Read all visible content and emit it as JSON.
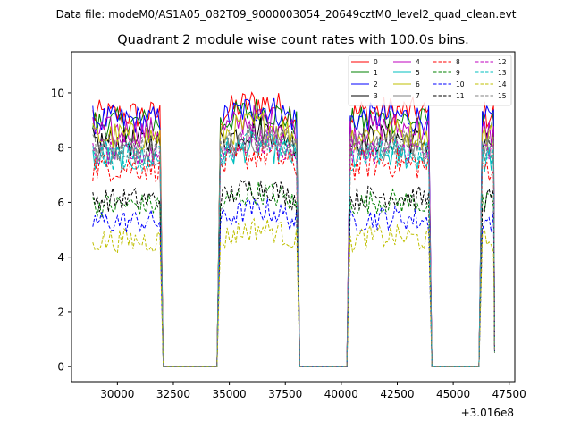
{
  "suptitle": "Data file: modeM0/AS1A05_082T09_9000003054_20649cztM0_level2_quad_clean.evt",
  "chart_data": {
    "type": "line",
    "title": "Quadrant 2 module wise count rates with 100.0s bins.",
    "xlabel": "",
    "ylabel": "",
    "x_offset_label": "+3.016e8",
    "xlim": [
      27950,
      47750
    ],
    "ylim": [
      -0.55,
      11.5
    ],
    "x_ticks": [
      30000,
      32500,
      35000,
      37500,
      40000,
      42500,
      45000,
      47500
    ],
    "x_tick_labels": [
      "30000",
      "32500",
      "35000",
      "37500",
      "40000",
      "42500",
      "45000",
      "47500"
    ],
    "y_ticks": [
      0,
      2,
      4,
      6,
      8,
      10
    ],
    "y_tick_labels": [
      "0",
      "2",
      "4",
      "6",
      "8",
      "10"
    ],
    "grid": false,
    "legend_position": "top-right",
    "segments": [
      {
        "start": 28900,
        "end": 31900
      },
      {
        "start": 34600,
        "end": 38000
      },
      {
        "start": 40400,
        "end": 43900
      },
      {
        "start": 46300,
        "end": 46800
      }
    ],
    "gaps_level": 0,
    "series": [
      {
        "name": "0",
        "color": "#ff0000",
        "style": "solid",
        "level": 9.2
      },
      {
        "name": "1",
        "color": "#008000",
        "style": "solid",
        "level": 8.9
      },
      {
        "name": "2",
        "color": "#0000ff",
        "style": "solid",
        "level": 9.0
      },
      {
        "name": "3",
        "color": "#000000",
        "style": "solid",
        "level": 8.2
      },
      {
        "name": "4",
        "color": "#bf00bf",
        "style": "solid",
        "level": 8.6
      },
      {
        "name": "5",
        "color": "#00bfbf",
        "style": "solid",
        "level": 7.6
      },
      {
        "name": "6",
        "color": "#bfbf00",
        "style": "solid",
        "level": 8.4
      },
      {
        "name": "7",
        "color": "#808080",
        "style": "solid",
        "level": 7.9
      },
      {
        "name": "8",
        "color": "#ff0000",
        "style": "dashed",
        "level": 7.3
      },
      {
        "name": "9",
        "color": "#008000",
        "style": "dashed",
        "level": 5.9
      },
      {
        "name": "10",
        "color": "#0000ff",
        "style": "dashed",
        "level": 5.3
      },
      {
        "name": "11",
        "color": "#000000",
        "style": "dashed",
        "level": 6.1
      },
      {
        "name": "12",
        "color": "#bf00bf",
        "style": "dashed",
        "level": 7.8
      },
      {
        "name": "13",
        "color": "#00bfbf",
        "style": "dashed",
        "level": 7.7
      },
      {
        "name": "14",
        "color": "#bfbf00",
        "style": "dashed",
        "level": 4.6
      },
      {
        "name": "15",
        "color": "#808080",
        "style": "dashed",
        "level": 8.0
      }
    ]
  }
}
